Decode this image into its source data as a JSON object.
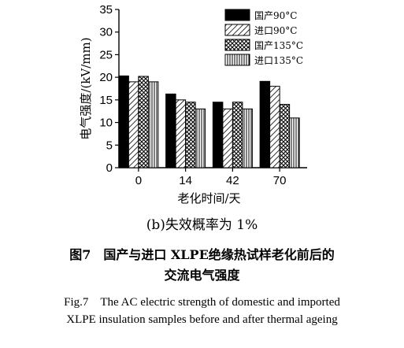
{
  "chart_data": {
    "type": "bar",
    "ylabel": "电气强度/(kV/mm)",
    "xlabel": "老化时间/天",
    "ylim": [
      0,
      35
    ],
    "yticks": [
      0,
      5,
      10,
      15,
      20,
      25,
      30,
      35
    ],
    "categories": [
      "0",
      "14",
      "42",
      "70"
    ],
    "grid": false,
    "legend_position": "top-right",
    "series": [
      {
        "name": "国产90°C",
        "pattern": "solid",
        "values": [
          20.3,
          16.3,
          14.5,
          19.1
        ]
      },
      {
        "name": "进口90°C",
        "pattern": "diagonal",
        "values": [
          19.0,
          15.0,
          13.0,
          18.0
        ]
      },
      {
        "name": "国产135°C",
        "pattern": "crosshatch",
        "values": [
          20.2,
          14.5,
          14.5,
          14.0
        ]
      },
      {
        "name": "进口135°C",
        "pattern": "vertical",
        "values": [
          19.0,
          13.0,
          13.0,
          11.0
        ]
      }
    ]
  },
  "captions": {
    "subtitle": "(b)失效概率为 1%",
    "figure_cn_line1": "图7　国产与进口 XLPE绝缘热试样老化前后的",
    "figure_cn_line2": "交流电气强度",
    "figure_en_line1": "Fig.7　The AC electric strength of domestic and imported",
    "figure_en_line2": "XLPE insulation samples before and after thermal ageing"
  }
}
